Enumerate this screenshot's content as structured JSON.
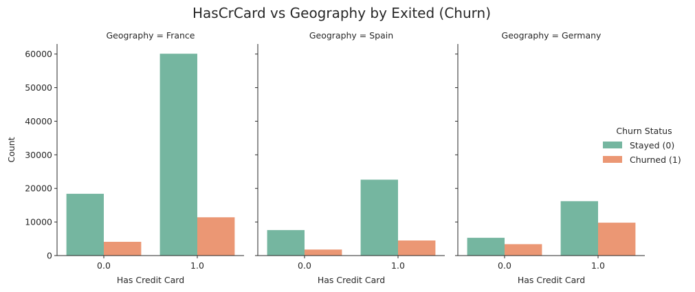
{
  "chart_data": {
    "type": "bar",
    "title": "HasCrCard vs Geography by Exited (Churn)",
    "xlabel": "Has Credit Card",
    "ylabel": "Count",
    "ylim": [
      0,
      63000
    ],
    "yticks": [
      0,
      10000,
      20000,
      30000,
      40000,
      50000,
      60000
    ],
    "categories": [
      "0.0",
      "1.0"
    ],
    "legend": {
      "title": "Churn Status",
      "placement": "right"
    },
    "series_colors": [
      "#75b6a0",
      "#eb9774"
    ],
    "panels": [
      {
        "label": "Geography = France",
        "series": [
          {
            "name": "Stayed (0)",
            "values": [
              18400,
              60100
            ]
          },
          {
            "name": "Churned (1)",
            "values": [
              4100,
              11400
            ]
          }
        ]
      },
      {
        "label": "Geography = Spain",
        "series": [
          {
            "name": "Stayed (0)",
            "values": [
              7600,
              22600
            ]
          },
          {
            "name": "Churned (1)",
            "values": [
              1800,
              4500
            ]
          }
        ]
      },
      {
        "label": "Geography = Germany",
        "series": [
          {
            "name": "Stayed (0)",
            "values": [
              5300,
              16200
            ]
          },
          {
            "name": "Churned (1)",
            "values": [
              3400,
              9800
            ]
          }
        ]
      }
    ]
  }
}
